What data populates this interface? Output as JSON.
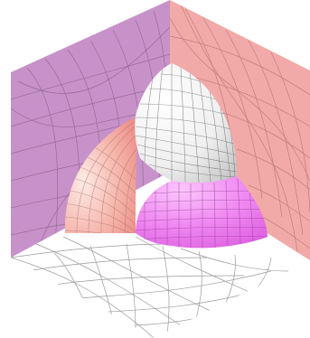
{
  "figure": {
    "kind": "3d-mesh-illustration",
    "description_visible_text": "",
    "colors": {
      "background": "#ffffff",
      "left_wall": "#c792c9",
      "right_wall": "#f1aaa8",
      "left_sphere_light": "#fde8e2",
      "left_sphere_dark": "#f09c94",
      "top_sphere_light": "#ffffff",
      "top_sphere_dark": "#cfcfcf",
      "front_sphere_light": "#f9b6f9",
      "front_sphere_dark": "#e25ee4",
      "mesh_line": "#6b6b6b",
      "floor_line": "#9a9a9a"
    }
  }
}
